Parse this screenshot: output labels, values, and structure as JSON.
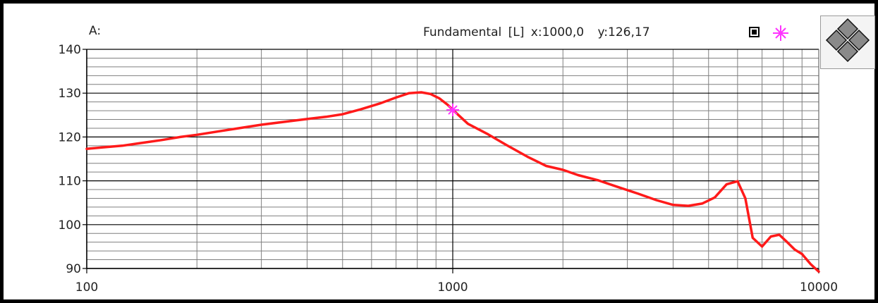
{
  "panel": {
    "label": "A:"
  },
  "readout": {
    "series": "Fundamental",
    "channel": "[L]",
    "x_text": "x:1000,0",
    "y_text": "y:126,17"
  },
  "colors": {
    "curve": "#ff1a1a",
    "marker": "#ff33ff",
    "grid": "#000000",
    "minor_grid": "#7f7f7f"
  },
  "icons": {
    "swatch": "filled-square-icon",
    "marker": "cross-star-marker-icon",
    "navigate": "diamond-nav-icon"
  },
  "chart_data": {
    "type": "line",
    "x_scale": "log",
    "xlim": [
      100,
      10000
    ],
    "ylim": [
      90,
      140
    ],
    "x_ticks": [
      "100",
      "1000",
      "10000"
    ],
    "y_ticks": [
      "90",
      "100",
      "110",
      "120",
      "130",
      "140"
    ],
    "grid": true,
    "cursor": {
      "x": 1000,
      "y": 126.17
    },
    "series": [
      {
        "x": [
          100,
          110,
          125,
          140,
          160,
          180,
          200,
          230,
          260,
          300,
          350,
          400,
          450,
          500,
          560,
          630,
          700,
          760,
          820,
          870,
          920,
          970,
          1000,
          1100,
          1250,
          1400,
          1600,
          1800,
          2000,
          2200,
          2500,
          2800,
          3200,
          3600,
          4000,
          4400,
          4800,
          5200,
          5600,
          6000,
          6300,
          6600,
          7000,
          7400,
          7800,
          8200,
          8600,
          9000,
          9500,
          10000
        ],
        "y": [
          117.3,
          117.6,
          118.0,
          118.6,
          119.3,
          120.0,
          120.5,
          121.3,
          122.0,
          122.8,
          123.5,
          124.1,
          124.6,
          125.2,
          126.3,
          127.6,
          129.0,
          130.0,
          130.2,
          129.8,
          128.8,
          127.3,
          126.2,
          123.0,
          120.6,
          118.2,
          115.5,
          113.4,
          112.5,
          111.3,
          110.1,
          108.7,
          107.1,
          105.6,
          104.5,
          104.3,
          104.8,
          106.2,
          109.2,
          109.9,
          106.0,
          97.0,
          95.0,
          97.3,
          97.7,
          96.0,
          94.3,
          93.3,
          91.0,
          89.3
        ]
      }
    ]
  }
}
